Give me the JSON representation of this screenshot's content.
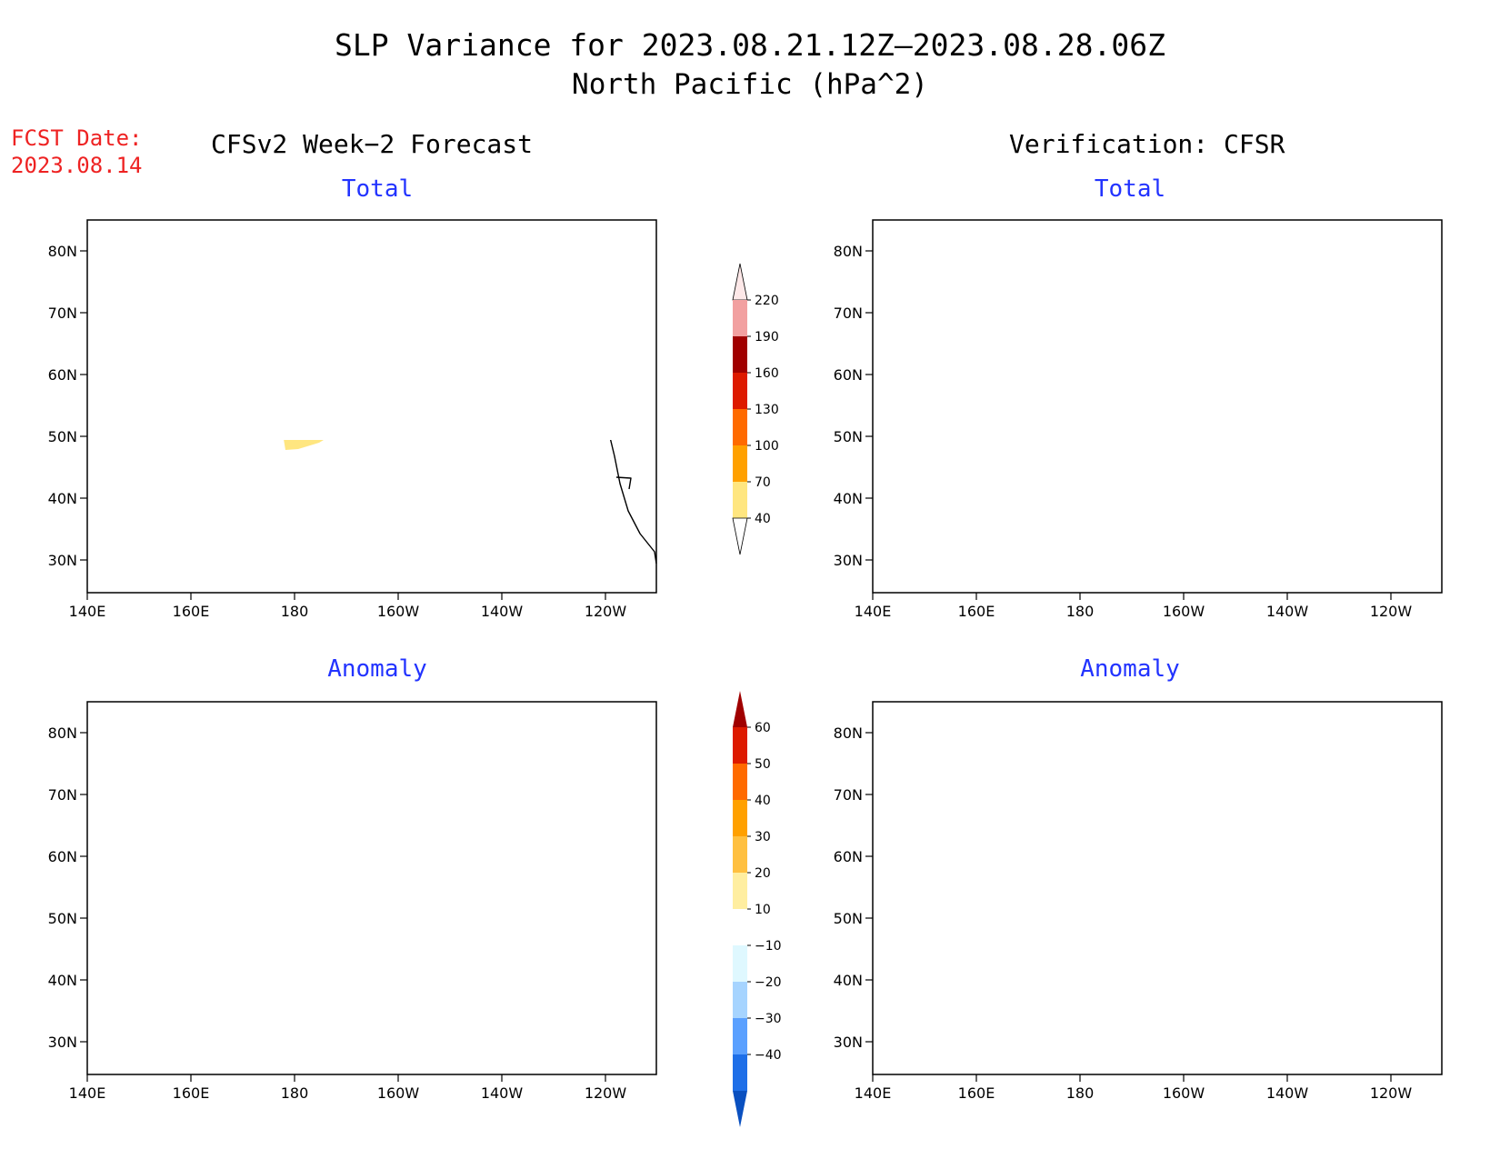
{
  "title": "SLP Variance for 2023.08.21.12Z–2023.08.28.06Z",
  "subtitle": "North Pacific (hPa^2)",
  "forecast": {
    "label": "FCST Date:",
    "date": "2023.08.14"
  },
  "columns": {
    "left": "CFSv2 Week−2 Forecast",
    "right": "Verification: CFSR"
  },
  "panels": {
    "top_left": {
      "title": "Total"
    },
    "top_right": {
      "title": "Total"
    },
    "bottom_left": {
      "title": "Anomaly"
    },
    "bottom_right": {
      "title": "Anomaly"
    }
  },
  "axes": {
    "lon_labels": [
      "140E",
      "160E",
      "180",
      "160W",
      "140W",
      "120W"
    ],
    "lat_labels": [
      "80N",
      "70N",
      "60N",
      "50N",
      "40N",
      "30N"
    ]
  },
  "total_colorbar": {
    "levels": [
      "220",
      "190",
      "160",
      "130",
      "100",
      "70",
      "40"
    ],
    "colors": [
      "#fde8e8",
      "#f2a0a0",
      "#a00000",
      "#dd1a00",
      "#ff6a00",
      "#ffa000",
      "#ffe680"
    ]
  },
  "anomaly_colorbar": {
    "levels": [
      "60",
      "50",
      "40",
      "30",
      "20",
      "10",
      "−10",
      "−20",
      "−30",
      "−40"
    ],
    "colors": [
      "#a00000",
      "#dd1a00",
      "#ff6a00",
      "#ffa000",
      "#ffc040",
      "#ffeea0",
      "#ffffff",
      "#dff8ff",
      "#a6d4ff",
      "#5aa0ff",
      "#1e6fe8",
      "#0a50c0"
    ]
  },
  "colors": {
    "title_text": "#000000",
    "forecast_text": "#ee2222",
    "panel_title_text": "#2233ff"
  }
}
